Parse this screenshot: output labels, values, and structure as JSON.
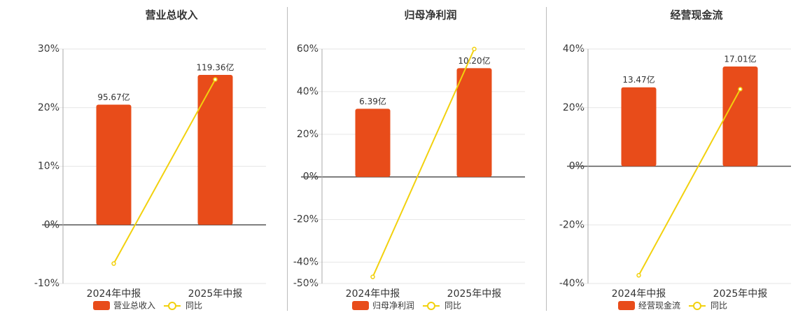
{
  "chart_data": [
    {
      "type": "combo",
      "title": "营业总收入",
      "categories": [
        "2024年中报",
        "2025年中报"
      ],
      "series": [
        {
          "name": "营业总收入",
          "type": "bar",
          "axis": "y2",
          "color": "#e84c1a",
          "values": [
            95.67,
            119.36
          ],
          "value_labels": [
            "95.67亿",
            "119.36亿"
          ]
        },
        {
          "name": "同比",
          "type": "line",
          "color": "#f2d10e",
          "values": [
            -6.6,
            24.8
          ]
        }
      ],
      "ylim": [
        -10,
        30
      ],
      "yticks": [
        {
          "value": -10,
          "label": "-10%"
        },
        {
          "value": 0,
          "label": "0%"
        },
        {
          "value": 10,
          "label": "10%"
        },
        {
          "value": 20,
          "label": "20%"
        },
        {
          "value": 30,
          "label": "30%"
        }
      ],
      "y2lim": [
        -46.67,
        140
      ],
      "grid": true
    },
    {
      "type": "combo",
      "title": "归母净利润",
      "categories": [
        "2024年中报",
        "2025年中报"
      ],
      "series": [
        {
          "name": "归母净利润",
          "type": "bar",
          "axis": "y2",
          "color": "#e84c1a",
          "values": [
            6.39,
            10.2
          ],
          "value_labels": [
            "6.39亿",
            "10.20亿"
          ]
        },
        {
          "name": "同比",
          "type": "line",
          "color": "#f2d10e",
          "values": [
            -46.9,
            60
          ]
        }
      ],
      "ylim": [
        -50,
        60
      ],
      "yticks": [
        {
          "value": -50,
          "label": "-50%"
        },
        {
          "value": -40,
          "label": "-40%"
        },
        {
          "value": -20,
          "label": "-20%"
        },
        {
          "value": 0,
          "label": "0%"
        },
        {
          "value": 20,
          "label": "20%"
        },
        {
          "value": 40,
          "label": "40%"
        },
        {
          "value": 60,
          "label": "60%"
        }
      ],
      "y2lim": [
        -10,
        12
      ],
      "grid": true
    },
    {
      "type": "combo",
      "title": "经营现金流",
      "categories": [
        "2024年中报",
        "2025年中报"
      ],
      "series": [
        {
          "name": "经营现金流",
          "type": "bar",
          "axis": "y2",
          "color": "#e84c1a",
          "values": [
            13.47,
            17.01
          ],
          "value_labels": [
            "13.47亿",
            "17.01亿"
          ]
        },
        {
          "name": "同比",
          "type": "line",
          "color": "#f2d10e",
          "values": [
            -37.2,
            26.3
          ]
        }
      ],
      "ylim": [
        -40,
        40
      ],
      "yticks": [
        {
          "value": -40,
          "label": "-40%"
        },
        {
          "value": -20,
          "label": "-20%"
        },
        {
          "value": 0,
          "label": "0%"
        },
        {
          "value": 20,
          "label": "20%"
        },
        {
          "value": 40,
          "label": "40%"
        }
      ],
      "y2lim": [
        -20,
        20
      ],
      "grid": true
    }
  ]
}
